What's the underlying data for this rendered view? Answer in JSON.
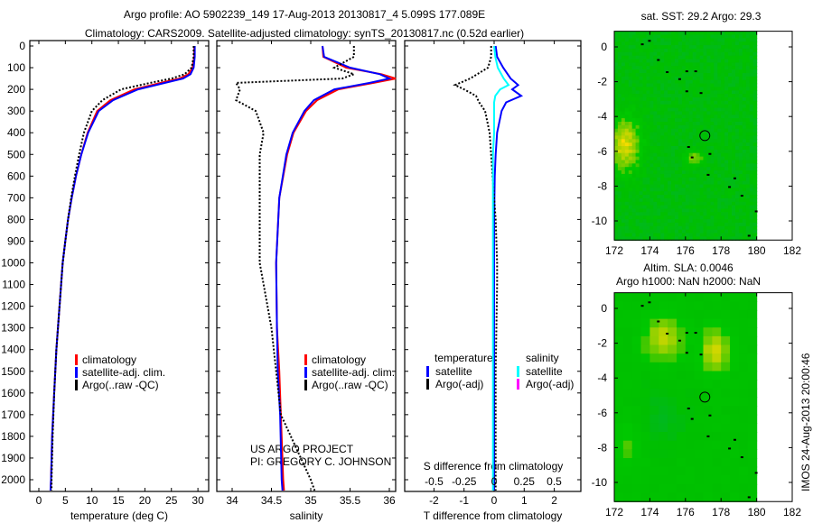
{
  "title": {
    "line1": "Argo profile: AO 5902239_149 17-Aug-2013 20130817_4 5.099S 177.089E",
    "line2": "Climatology: CARS2009. Satellite-adjusted climatology: synTS_20130817.nc (0.52d earlier)"
  },
  "stamp": "IMOS 24-Aug-2013 20:00:46",
  "colors": {
    "climatology": "#ff0000",
    "satellite": "#0000ff",
    "argo": "#000000",
    "sal_satellite": "#00ffff",
    "sal_argo": "#ff00ff"
  },
  "chart_data": [
    {
      "type": "line",
      "id": "temperature",
      "xlabel": "temperature (deg C)",
      "ylabel": "",
      "xlim": [
        -2,
        32
      ],
      "ylim": [
        2055,
        0
      ],
      "xticks": [
        "0",
        "5",
        "10",
        "15",
        "20",
        "25",
        "30"
      ],
      "yticks": [
        "0",
        "100",
        "200",
        "300",
        "400",
        "500",
        "600",
        "700",
        "800",
        "900",
        "1000",
        "1100",
        "1200",
        "1300",
        "1400",
        "1500",
        "1600",
        "1700",
        "1800",
        "1900",
        "2000"
      ],
      "legend": [
        "climatology",
        "satellite-adj. clim.",
        "Argo(..raw -QC)"
      ],
      "depth": [
        0,
        50,
        100,
        130,
        150,
        170,
        200,
        250,
        300,
        400,
        500,
        600,
        700,
        800,
        900,
        1000,
        1200,
        1400,
        1600,
        1800,
        2000,
        2050
      ],
      "series": [
        {
          "name": "climatology",
          "values": [
            29.3,
            29.3,
            29.0,
            28.2,
            26.5,
            23,
            18,
            13.5,
            11,
            9.2,
            8.0,
            7.0,
            6.2,
            5.5,
            5.0,
            4.5,
            3.9,
            3.3,
            2.9,
            2.5,
            2.3,
            2.2
          ]
        },
        {
          "name": "satellite-adj. clim.",
          "values": [
            29.4,
            29.4,
            29.2,
            28.6,
            27.2,
            23.8,
            18.7,
            14,
            11.3,
            9.3,
            8.0,
            7.0,
            6.2,
            5.5,
            5.0,
            4.5,
            3.9,
            3.3,
            2.9,
            2.5,
            2.3,
            2.2
          ]
        },
        {
          "name": "Argo(..raw -QC)",
          "values": [
            29.2,
            29.2,
            28.8,
            27.5,
            25,
            21,
            15.5,
            12,
            10,
            8.5,
            7.6,
            6.8,
            6.1,
            5.5,
            5.0,
            4.5,
            3.9,
            3.3,
            2.9,
            2.6,
            2.4,
            2.4
          ]
        }
      ]
    },
    {
      "type": "line",
      "id": "salinity",
      "xlabel": "salinity",
      "xlim": [
        33.85,
        36.1
      ],
      "ylim": [
        2055,
        0
      ],
      "xticks": [
        "34",
        "34.5",
        "35",
        "35.5",
        "36"
      ],
      "legend": [
        "climatology",
        "satellite-adj. clim.",
        "Argo(..raw -QC)"
      ],
      "annotation": [
        "US ARGO PROJECT",
        "PI: GREGORY C. JOHNSON"
      ],
      "depth": [
        0,
        50,
        100,
        130,
        150,
        170,
        200,
        250,
        300,
        400,
        500,
        700,
        1000,
        1300,
        1500,
        1700,
        2000,
        2050
      ],
      "series": [
        {
          "name": "climatology",
          "values": [
            35.15,
            35.16,
            35.45,
            35.9,
            36.08,
            35.8,
            35.35,
            35.08,
            34.94,
            34.78,
            34.7,
            34.6,
            34.56,
            34.57,
            34.6,
            34.62,
            34.65,
            34.66
          ]
        },
        {
          "name": "satellite-adj. clim.",
          "values": [
            35.15,
            35.17,
            35.5,
            35.88,
            36.0,
            35.75,
            35.3,
            35.04,
            34.92,
            34.77,
            34.69,
            34.6,
            34.56,
            34.57,
            34.58,
            34.61,
            34.63,
            34.64
          ]
        },
        {
          "name": "Argo(..raw -QC)",
          "values": [
            35.55,
            35.55,
            35.3,
            35.55,
            35.4,
            34.05,
            34.1,
            34.05,
            34.3,
            34.4,
            34.35,
            34.35,
            34.35,
            34.5,
            34.56,
            34.62,
            35.0,
            35.05
          ]
        }
      ]
    },
    {
      "type": "line",
      "id": "difference",
      "xlabel": "T difference from climatology",
      "x2label": "S difference from climatology",
      "xlim": [
        -3,
        2.9
      ],
      "x2lim": [
        -0.75,
        0.725
      ],
      "ylim": [
        2055,
        0
      ],
      "xticks": [
        "-2",
        "-1",
        "0",
        "1",
        "2"
      ],
      "x2ticks": [
        "-0.5",
        "-0.25",
        "0",
        "0.25",
        "0.5"
      ],
      "legend": {
        "temperature_title": "temperature",
        "salinity_title": "salinity",
        "items": [
          "satellite",
          "Argo(-adj)",
          "satellite",
          "Argo(-adj)"
        ]
      },
      "depth": [
        0,
        50,
        100,
        150,
        180,
        200,
        230,
        260,
        300,
        400,
        500,
        600,
        800,
        1000,
        1100,
        1500,
        2000,
        2050
      ],
      "series": [
        {
          "name": "T satellite",
          "values": [
            0.05,
            0.1,
            0.3,
            0.55,
            0.8,
            0.6,
            0.9,
            0.4,
            0.25,
            0.1,
            0.05,
            0.02,
            0,
            0,
            0,
            0,
            0,
            0
          ]
        },
        {
          "name": "T Argo(-adj)",
          "values": [
            -0.1,
            -0.1,
            -0.2,
            -0.8,
            -1.3,
            -1.0,
            -0.6,
            -0.5,
            -0.3,
            -0.15,
            -0.1,
            -0.05,
            0.05,
            0.1,
            0.1,
            0.05,
            0.05,
            0.05
          ]
        },
        {
          "name": "S satellite",
          "values": [
            0,
            0.01,
            0.03,
            0.08,
            0.12,
            0.05,
            0.01,
            0,
            0,
            0,
            -0.01,
            -0.01,
            -0.01,
            -0.01,
            -0.01,
            -0.01,
            -0.01,
            -0.01
          ]
        }
      ]
    },
    {
      "type": "heatmap",
      "id": "sst-map",
      "title": "sat. SST: 29.2 Argo: 29.3",
      "xlim": [
        172,
        182
      ],
      "ylim": [
        -11.1,
        0.9
      ],
      "xticks": [
        "172",
        "174",
        "176",
        "178",
        "180",
        "182"
      ],
      "yticks": [
        "0",
        "-2",
        "-4",
        "-6",
        "-8",
        "-10"
      ],
      "data_lon_range": [
        172,
        180
      ],
      "argo_position": [
        177.089,
        -5.099
      ]
    },
    {
      "type": "heatmap",
      "id": "sla-map",
      "title": "Altim. SLA: 0.0046",
      "subtitle": "Argo h1000: NaN h2000: NaN",
      "xlim": [
        172,
        182
      ],
      "ylim": [
        -11.1,
        0.9
      ],
      "xticks": [
        "172",
        "174",
        "176",
        "178",
        "180",
        "182"
      ],
      "yticks": [
        "0",
        "-2",
        "-4",
        "-6",
        "-8",
        "-10"
      ],
      "data_lon_range": [
        172,
        180
      ],
      "argo_position": [
        177.089,
        -5.099
      ]
    }
  ]
}
